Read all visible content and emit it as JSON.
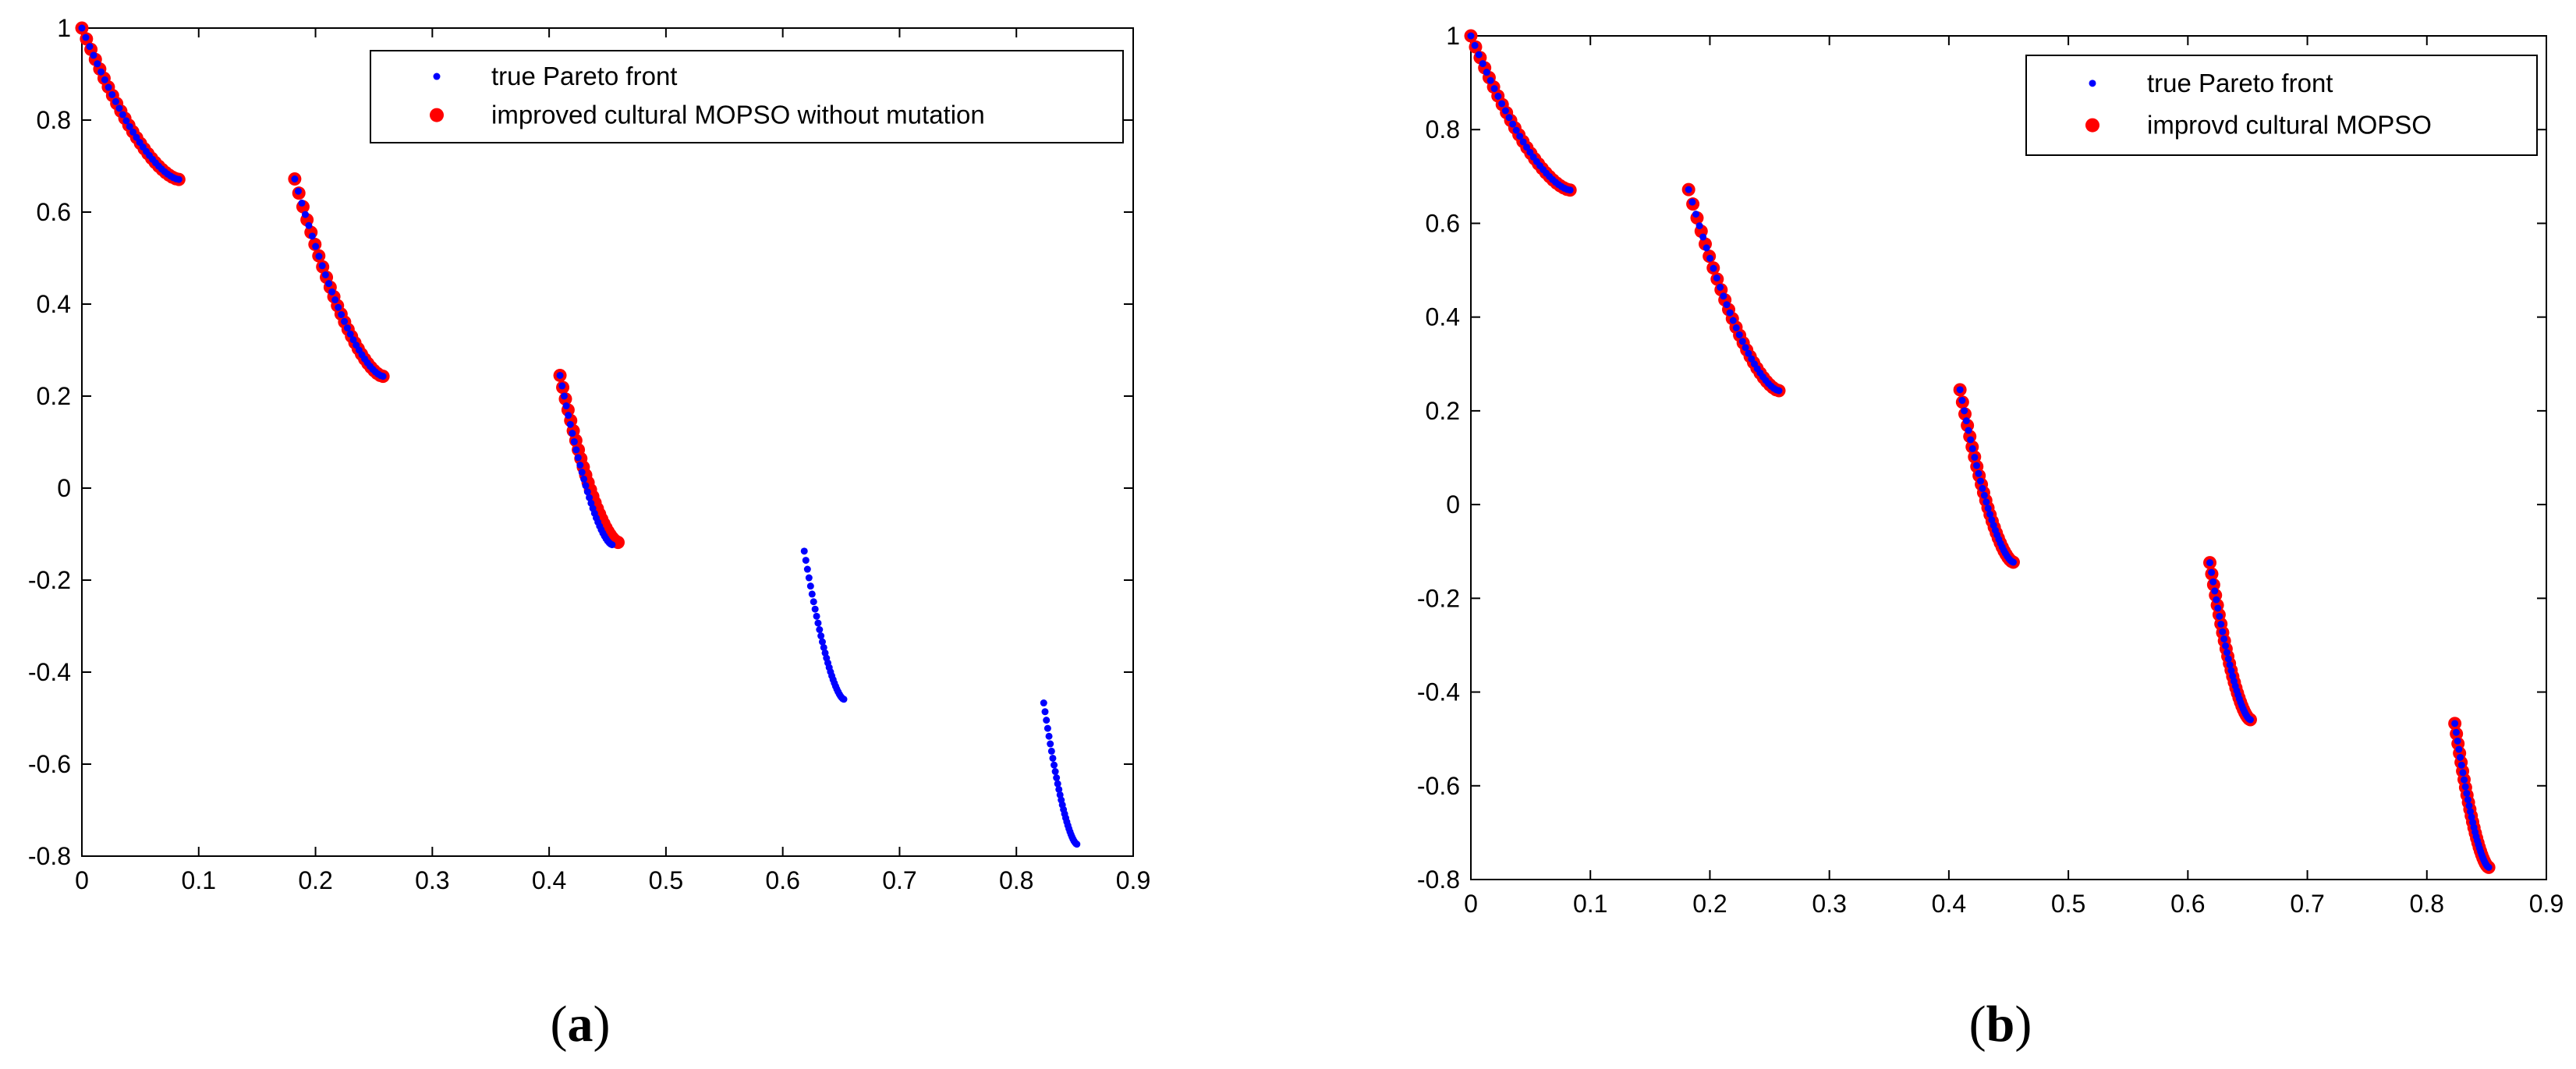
{
  "chart_data": [
    {
      "type": "scatter",
      "panel_label": {
        "open": "(",
        "letter": "a",
        "close": ")"
      },
      "xlim": [
        0,
        0.9
      ],
      "ylim": [
        -0.8,
        1
      ],
      "xticks": [
        "0",
        "0.1",
        "0.2",
        "0.3",
        "0.4",
        "0.5",
        "0.6",
        "0.7",
        "0.8",
        "0.9"
      ],
      "yticks": [
        "1",
        "0.8",
        "0.6",
        "0.4",
        "0.2",
        "0",
        "-0.2",
        "-0.4",
        "-0.6",
        "-0.8"
      ],
      "legend_position": "top-right",
      "series": [
        {
          "name": "true Pareto front",
          "color": "#0000ff",
          "marker": "small-dot",
          "segments": [
            {
              "x": [
                0.0,
                0.083
              ],
              "y": [
                1.0,
                0.671
              ]
            },
            {
              "x": [
                0.1822,
                0.2578
              ],
              "y": [
                0.672,
                0.243
              ]
            },
            {
              "x": [
                0.4093,
                0.4539
              ],
              "y": [
                0.245,
                -0.123
              ]
            },
            {
              "x": [
                0.6184,
                0.6523
              ],
              "y": [
                -0.137,
                -0.459
              ]
            },
            {
              "x": [
                0.8234,
                0.8518
              ],
              "y": [
                -0.467,
                -0.774
              ]
            }
          ]
        },
        {
          "name": "improved cultural MOPSO without mutation",
          "color": "#ff0000",
          "marker": "large-dot",
          "segments": [
            {
              "x": [
                0.0,
                0.083
              ],
              "y": [
                1.0,
                0.671
              ]
            },
            {
              "x": [
                0.1822,
                0.2578
              ],
              "y": [
                0.672,
                0.243
              ]
            },
            {
              "x": [
                0.4093,
                0.459
              ],
              "y": [
                0.245,
                -0.118
              ]
            }
          ]
        }
      ]
    },
    {
      "type": "scatter",
      "panel_label": {
        "open": "(",
        "letter": "b",
        "close": ")"
      },
      "xlim": [
        0,
        0.9
      ],
      "ylim": [
        -0.8,
        1
      ],
      "xticks": [
        "0",
        "0.1",
        "0.2",
        "0.3",
        "0.4",
        "0.5",
        "0.6",
        "0.7",
        "0.8",
        "0.9"
      ],
      "yticks": [
        "1",
        "0.8",
        "0.6",
        "0.4",
        "0.2",
        "0",
        "-0.2",
        "-0.4",
        "-0.6",
        "-0.8"
      ],
      "legend_position": "top-right",
      "series": [
        {
          "name": "true Pareto front",
          "color": "#0000ff",
          "marker": "small-dot",
          "segments": [
            {
              "x": [
                0.0,
                0.083
              ],
              "y": [
                1.0,
                0.671
              ]
            },
            {
              "x": [
                0.1822,
                0.2578
              ],
              "y": [
                0.672,
                0.243
              ]
            },
            {
              "x": [
                0.4093,
                0.4539
              ],
              "y": [
                0.245,
                -0.123
              ]
            },
            {
              "x": [
                0.6184,
                0.6523
              ],
              "y": [
                -0.124,
                -0.459
              ]
            },
            {
              "x": [
                0.8234,
                0.8518
              ],
              "y": [
                -0.467,
                -0.774
              ]
            }
          ]
        },
        {
          "name": "improvd cultural MOPSO",
          "color": "#ff0000",
          "marker": "large-dot",
          "segments": [
            {
              "x": [
                0.0,
                0.083
              ],
              "y": [
                1.0,
                0.671
              ]
            },
            {
              "x": [
                0.1822,
                0.2578
              ],
              "y": [
                0.672,
                0.243
              ]
            },
            {
              "x": [
                0.4093,
                0.4539
              ],
              "y": [
                0.245,
                -0.123
              ]
            },
            {
              "x": [
                0.6184,
                0.6523
              ],
              "y": [
                -0.124,
                -0.459
              ]
            },
            {
              "x": [
                0.8234,
                0.8518
              ],
              "y": [
                -0.467,
                -0.774
              ]
            }
          ]
        }
      ]
    }
  ]
}
